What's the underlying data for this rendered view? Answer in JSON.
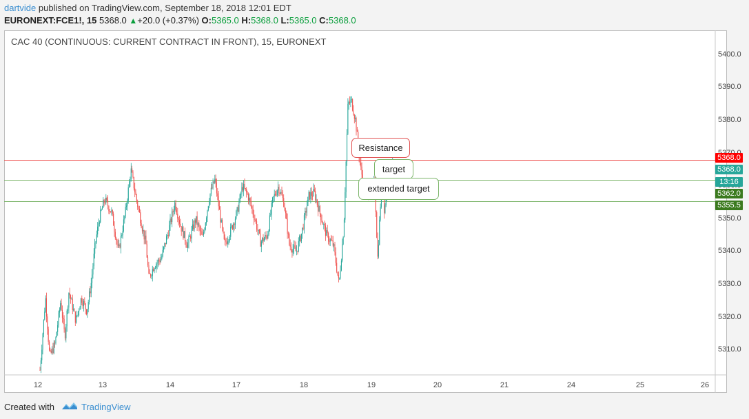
{
  "header": {
    "user": "dartvide",
    "published_text": "published on TradingView.com, September 18, 2018 12:01 EDT",
    "symbol": "EURONEXT:FCE1!, 15",
    "last": "5368.0",
    "arrow": "▲",
    "change": "+20.0 (+0.37%)",
    "o_label": "O:",
    "o_value": "5365.0",
    "h_label": "H:",
    "h_value": "5368.0",
    "l_label": "L:",
    "l_value": "5365.0",
    "c_label": "C:",
    "c_value": "5368.0"
  },
  "chart_data": {
    "type": "candlestick",
    "title": "CAC 40 (CONTINUOUS: CURRENT CONTRACT IN FRONT), 15, EURONEXT",
    "ylim": [
      5302.5,
      5407.5
    ],
    "y_ticks": [
      "5310.0",
      "5320.0",
      "5330.0",
      "5340.0",
      "5350.0",
      "5360.0",
      "5370.0",
      "5380.0",
      "5390.0",
      "5400.0"
    ],
    "x_ticks": [
      "12",
      "13",
      "14",
      "17",
      "18",
      "19",
      "20",
      "21",
      "24",
      "25",
      "26"
    ],
    "grid": false,
    "up_color": "#26a69a",
    "down_color": "#ef5350",
    "price_path": [
      [
        0,
        5304
      ],
      [
        8,
        5326
      ],
      [
        14,
        5308
      ],
      [
        22,
        5312
      ],
      [
        30,
        5325
      ],
      [
        36,
        5314
      ],
      [
        42,
        5328
      ],
      [
        52,
        5319
      ],
      [
        60,
        5326
      ],
      [
        68,
        5322
      ],
      [
        74,
        5330
      ],
      [
        80,
        5342
      ],
      [
        86,
        5350
      ],
      [
        94,
        5356
      ],
      [
        104,
        5352
      ],
      [
        114,
        5340
      ],
      [
        124,
        5352
      ],
      [
        132,
        5365
      ],
      [
        140,
        5356
      ],
      [
        148,
        5348
      ],
      [
        154,
        5342
      ],
      [
        158,
        5332
      ],
      [
        166,
        5336
      ],
      [
        176,
        5338
      ],
      [
        186,
        5346
      ],
      [
        196,
        5355
      ],
      [
        204,
        5348
      ],
      [
        214,
        5342
      ],
      [
        226,
        5350
      ],
      [
        236,
        5344
      ],
      [
        246,
        5357
      ],
      [
        254,
        5362
      ],
      [
        262,
        5350
      ],
      [
        268,
        5342
      ],
      [
        276,
        5346
      ],
      [
        286,
        5352
      ],
      [
        294,
        5360
      ],
      [
        302,
        5357
      ],
      [
        312,
        5350
      ],
      [
        320,
        5343
      ],
      [
        330,
        5345
      ],
      [
        338,
        5356
      ],
      [
        346,
        5360
      ],
      [
        354,
        5355
      ],
      [
        362,
        5342
      ],
      [
        372,
        5340
      ],
      [
        380,
        5346
      ],
      [
        390,
        5357
      ],
      [
        398,
        5358
      ],
      [
        406,
        5352
      ],
      [
        416,
        5345
      ],
      [
        426,
        5342
      ],
      [
        434,
        5330
      ],
      [
        441,
        5348
      ],
      [
        447,
        5385
      ],
      [
        452,
        5386
      ],
      [
        458,
        5380
      ],
      [
        465,
        5366
      ],
      [
        472,
        5358
      ],
      [
        480,
        5359
      ],
      [
        486,
        5361
      ],
      [
        490,
        5338
      ],
      [
        496,
        5362
      ],
      [
        500,
        5352
      ],
      [
        504,
        5362
      ],
      [
        509,
        5365
      ],
      [
        512,
        5368
      ]
    ],
    "levels": [
      {
        "label": "Resistance",
        "value": 5368.0,
        "color": "#ef5350"
      },
      {
        "label": "target",
        "value": 5362.0,
        "color": "#7cb56a"
      },
      {
        "label": "extended target",
        "value": 5355.5,
        "color": "#7cb56a"
      }
    ],
    "price_tags": [
      {
        "text": "5368.0",
        "color": "#ff0000"
      },
      {
        "text": "5368.0",
        "color": "#26a69a"
      },
      {
        "text": "13:16",
        "color": "#26a69a"
      },
      {
        "text": "5362.0",
        "color": "#3b7a1e"
      },
      {
        "text": "5355.5",
        "color": "#3b7a1e"
      }
    ],
    "annotations": [
      "Resistance",
      "target",
      "extended target"
    ]
  },
  "footer": {
    "created_with": "Created with",
    "brand": "TradingView"
  }
}
